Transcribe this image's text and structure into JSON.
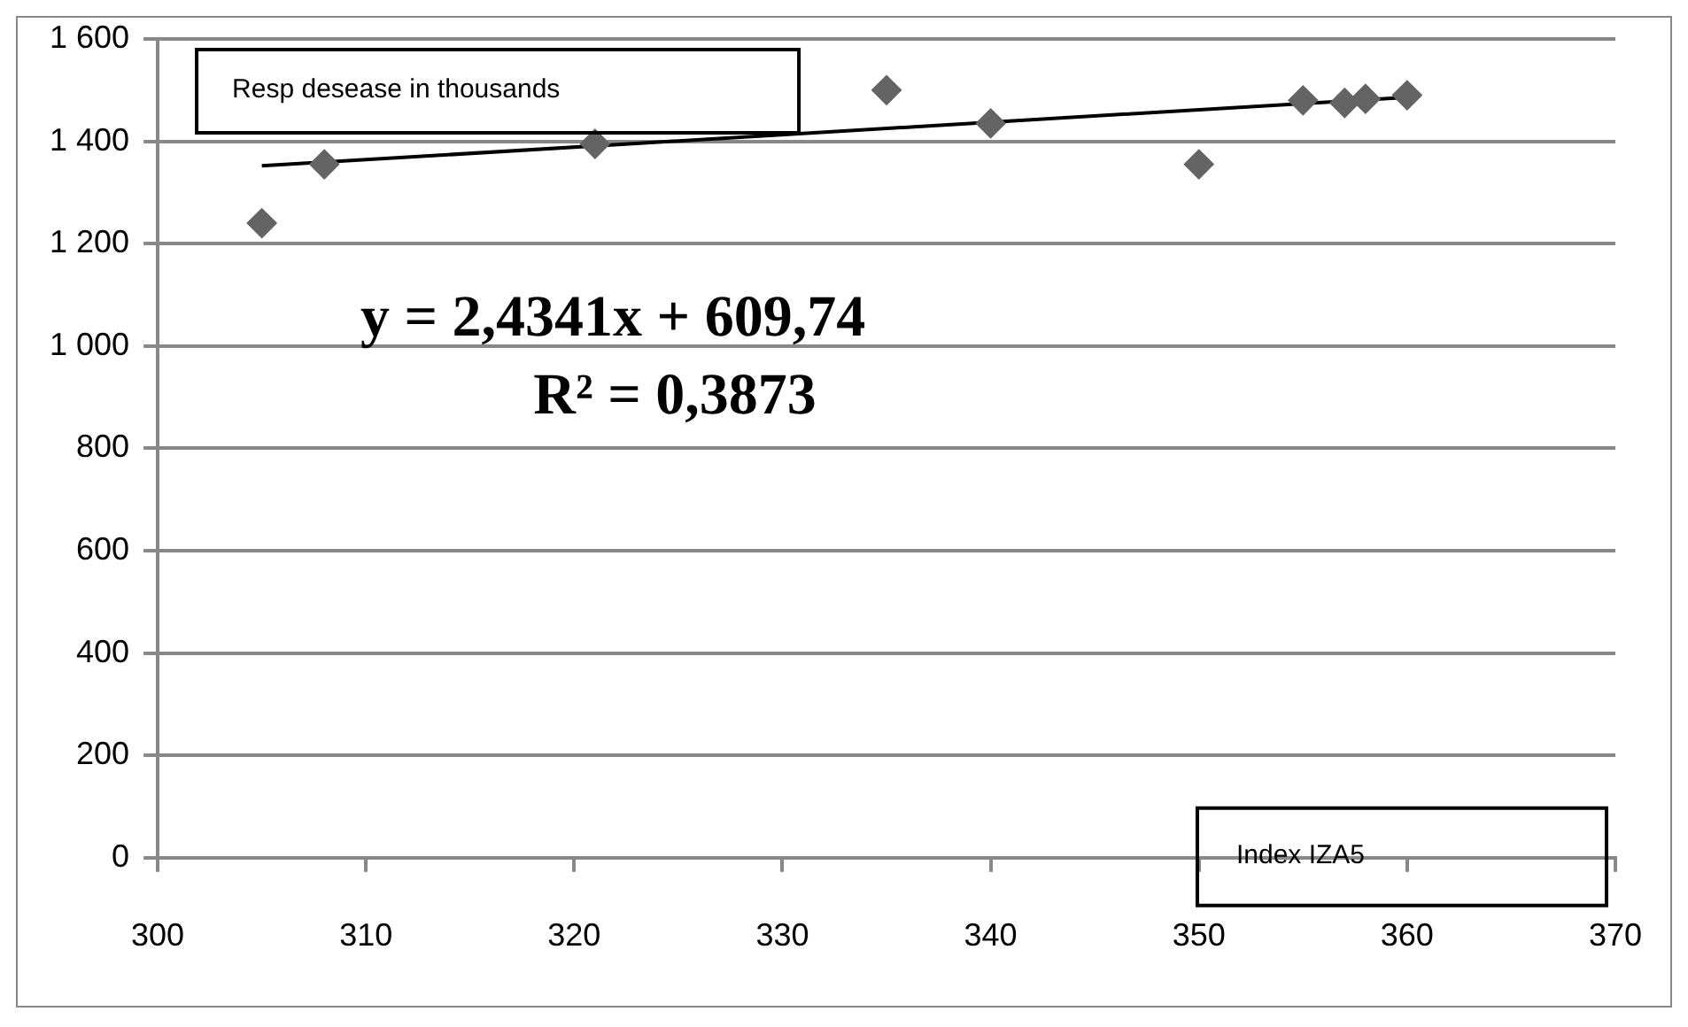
{
  "chart_data": {
    "type": "scatter",
    "xlabel": "Index IZA5",
    "ylabel": "Resp desease in thousands",
    "annotations": [
      "y = 2,4341x + 609,74",
      "R² = 0,3873"
    ],
    "x": [
      305,
      308,
      321,
      335,
      340,
      350,
      355,
      357,
      358,
      360
    ],
    "series": [
      {
        "color": "#646464",
        "marker": "diamond",
        "values": [
          1240,
          1355,
          1395,
          1500,
          1435,
          1355,
          1480,
          1475,
          1483,
          1490
        ]
      },
      {
        "type": "line",
        "color": "#000000",
        "marker": "none",
        "x": [
          305,
          360
        ],
        "values": [
          1352,
          1486
        ]
      }
    ],
    "xlim": [
      300,
      370
    ],
    "xticks": [
      300,
      310,
      320,
      330,
      340,
      350,
      360,
      370
    ],
    "ylim": [
      0,
      1600
    ],
    "yticks": [
      0,
      200,
      400,
      600,
      800,
      {
        "value": 1000,
        "label": "1 000"
      },
      {
        "value": 1200,
        "label": "1 200"
      },
      {
        "value": 1400,
        "label": "1 400"
      },
      {
        "value": 1600,
        "label": "1 600"
      }
    ],
    "grid": "y",
    "legend": false
  }
}
